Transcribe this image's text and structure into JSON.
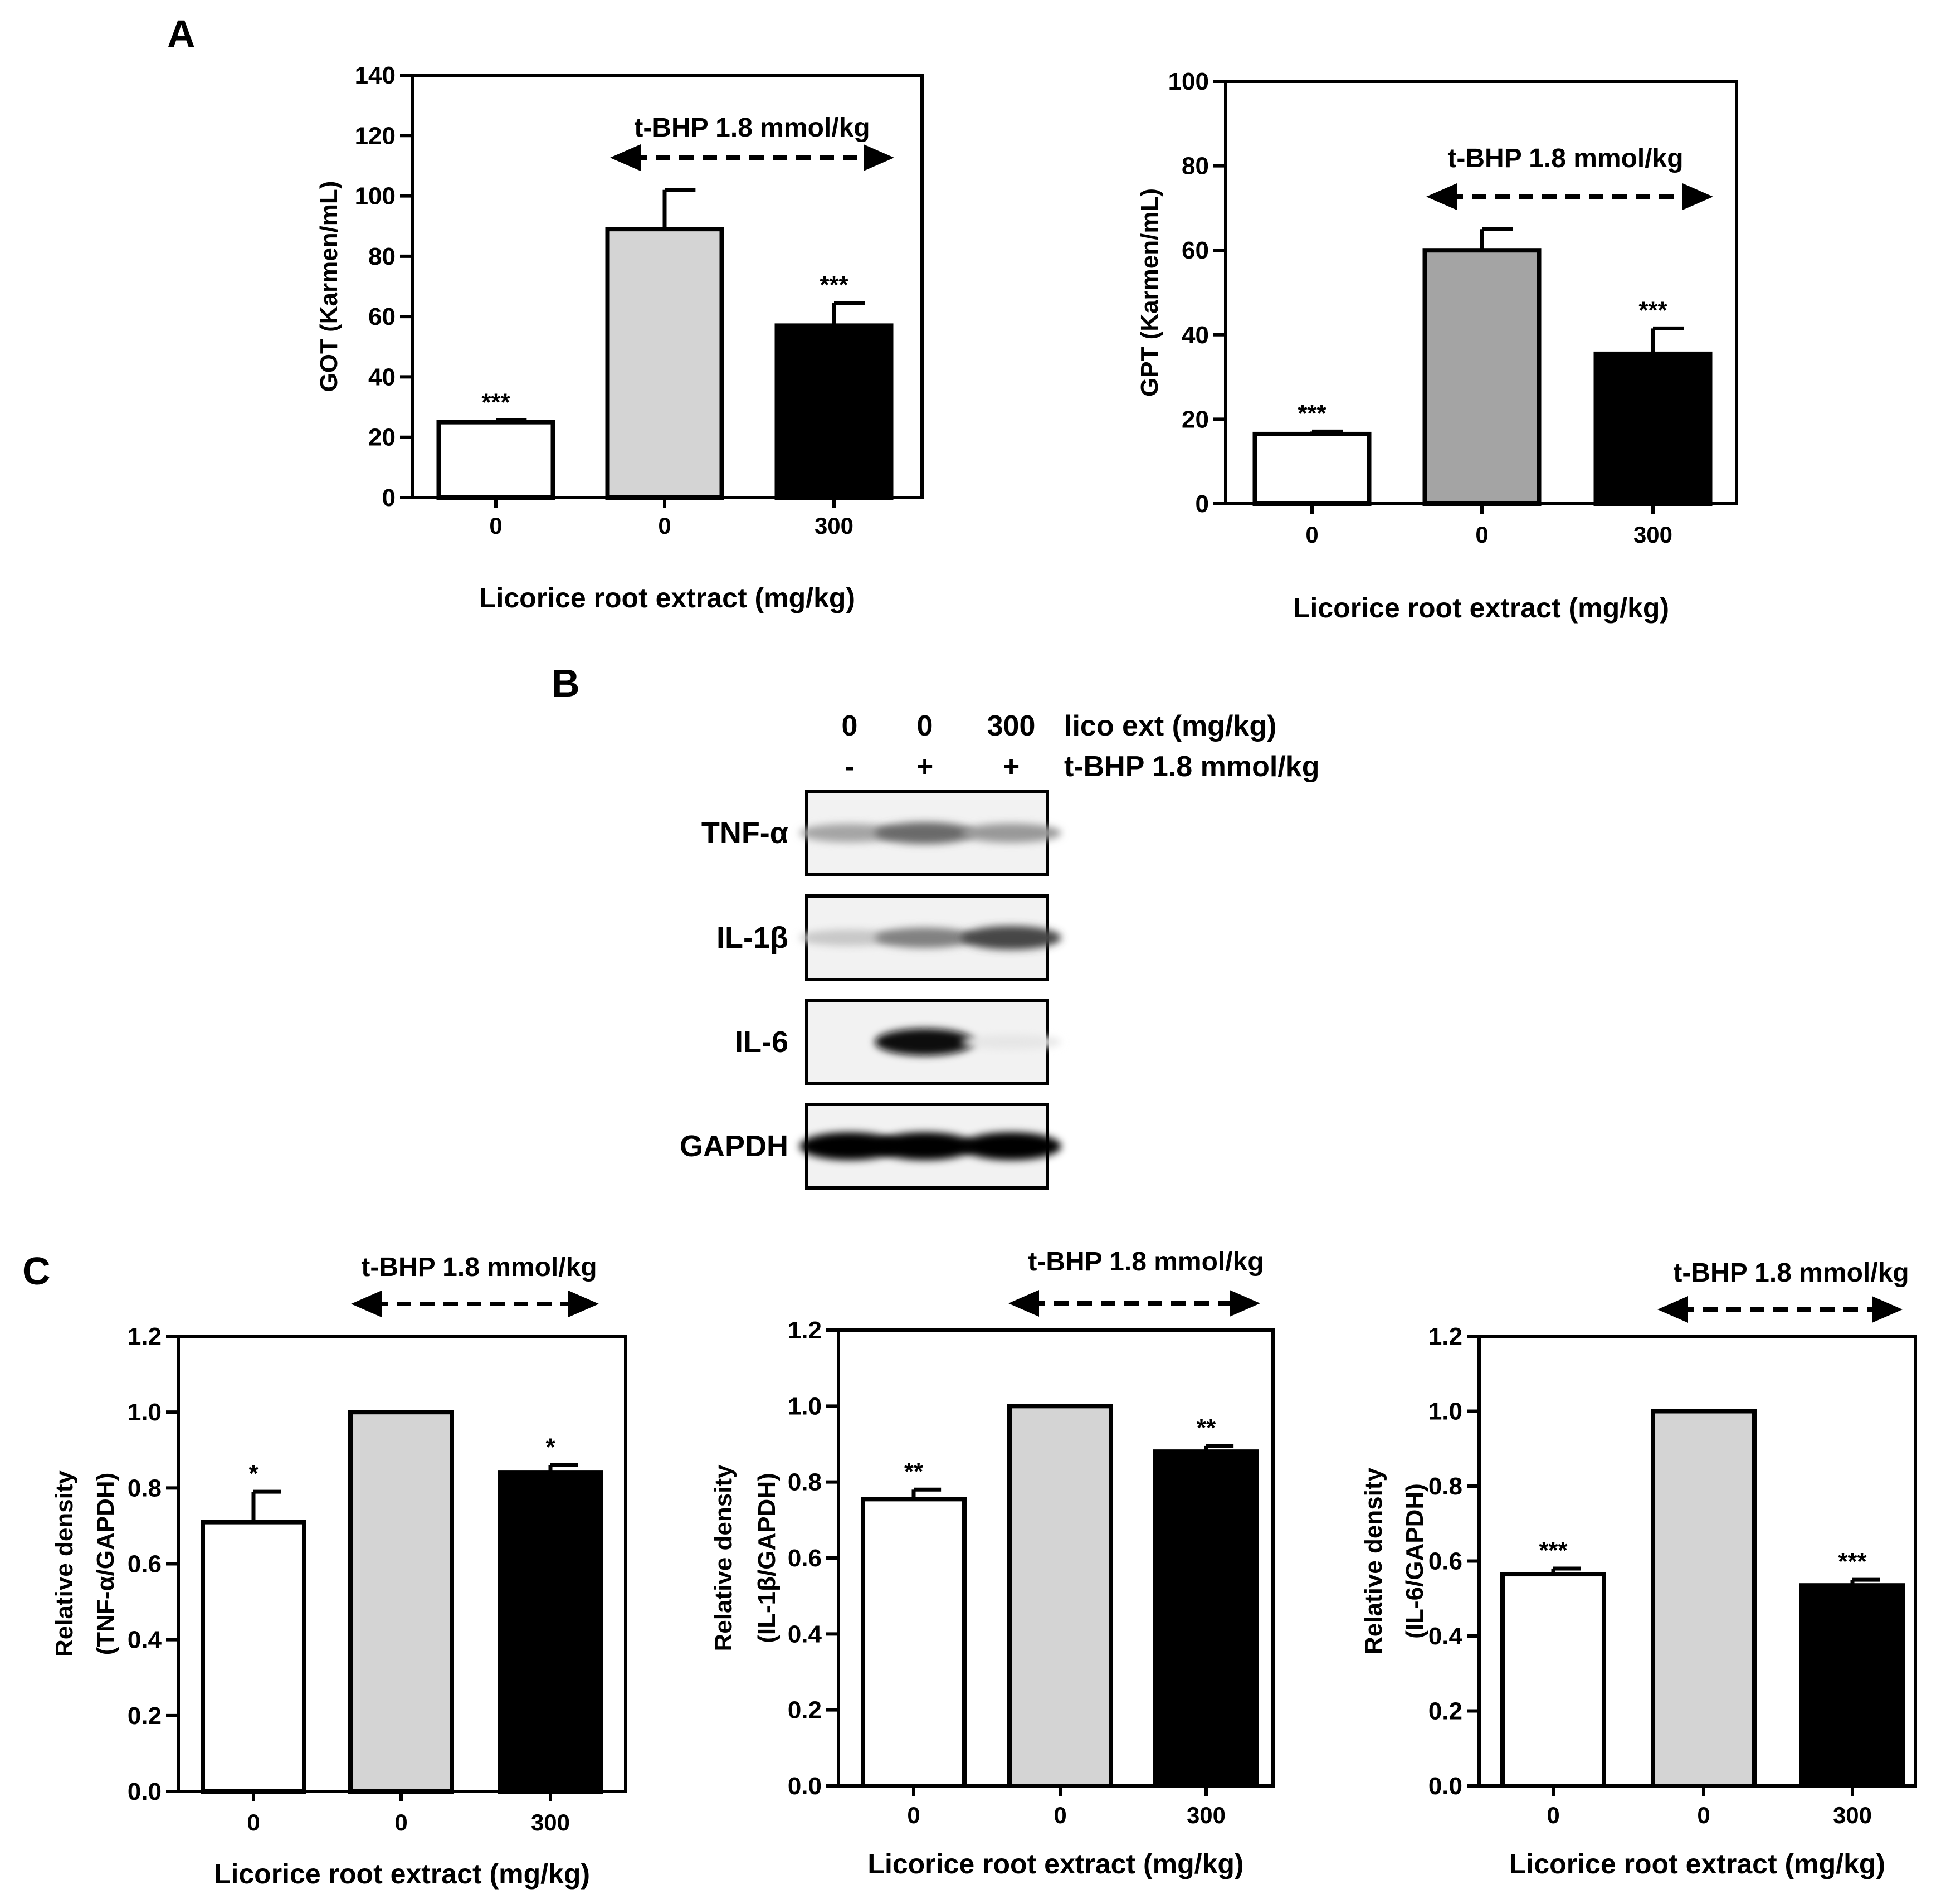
{
  "panels": {
    "A": "A",
    "B": "B",
    "C": "C"
  },
  "colors": {
    "control": "#ffffff",
    "tbhp_light": "#d4d4d4",
    "tbhp_mid": "#a4a4a4",
    "licorice": "#000000"
  },
  "chart_data": [
    {
      "id": "got",
      "panel": "A",
      "type": "bar",
      "categories": [
        "0",
        "0",
        "300"
      ],
      "values": [
        25,
        89,
        57
      ],
      "errors": [
        0.6,
        13,
        7.5
      ],
      "significance": [
        "***",
        "",
        "***"
      ],
      "bar_colors": [
        "#ffffff",
        "#d4d4d4",
        "#000000"
      ],
      "ylabel": "GOT (Karmen/mL)",
      "xlabel": "Licorice root extract (mg/kg)",
      "ylim": [
        0,
        140
      ],
      "yticks": [
        "0",
        "20",
        "40",
        "60",
        "80",
        "100",
        "120",
        "140"
      ],
      "annotation": "t-BHP 1.8 mmol/kg"
    },
    {
      "id": "gpt",
      "panel": "A",
      "type": "bar",
      "categories": [
        "0",
        "0",
        "300"
      ],
      "values": [
        16.5,
        60,
        35.5
      ],
      "errors": [
        0.6,
        5,
        6
      ],
      "significance": [
        "***",
        "",
        "***"
      ],
      "bar_colors": [
        "#ffffff",
        "#a4a4a4",
        "#000000"
      ],
      "ylabel": "GPT (Karmen/mL)",
      "xlabel": "Licorice root extract (mg/kg)",
      "ylim": [
        0,
        100
      ],
      "yticks": [
        "0",
        "20",
        "40",
        "60",
        "80",
        "100"
      ],
      "annotation": "t-BHP 1.8 mmol/kg"
    },
    {
      "id": "tnf",
      "panel": "C",
      "type": "bar",
      "categories": [
        "0",
        "0",
        "300"
      ],
      "values": [
        0.71,
        1.0,
        0.84
      ],
      "errors": [
        0.08,
        0,
        0.02
      ],
      "significance": [
        "*",
        "",
        "*"
      ],
      "bar_colors": [
        "#ffffff",
        "#d4d4d4",
        "#000000"
      ],
      "ylabel_line1": "Relative density",
      "ylabel_line2": "(TNF-α/GAPDH)",
      "xlabel": "Licorice root extract (mg/kg)",
      "ylim": [
        0,
        1.2
      ],
      "yticks": [
        "0.0",
        "0.2",
        "0.4",
        "0.6",
        "0.8",
        "1.0",
        "1.2"
      ],
      "annotation": "t-BHP 1.8 mmol/kg"
    },
    {
      "id": "il1b",
      "panel": "C",
      "type": "bar",
      "categories": [
        "0",
        "0",
        "300"
      ],
      "values": [
        0.755,
        1.0,
        0.88
      ],
      "errors": [
        0.025,
        0,
        0.015
      ],
      "significance": [
        "**",
        "",
        "**"
      ],
      "bar_colors": [
        "#ffffff",
        "#d4d4d4",
        "#000000"
      ],
      "ylabel_line1": "Relative density",
      "ylabel_line2": "(IL-1β/GAPDH)",
      "xlabel": "Licorice root extract (mg/kg)",
      "ylim": [
        0,
        1.2
      ],
      "yticks": [
        "0.0",
        "0.2",
        "0.4",
        "0.6",
        "0.8",
        "1.0",
        "1.2"
      ],
      "annotation": "t-BHP 1.8 mmol/kg"
    },
    {
      "id": "il6",
      "panel": "C",
      "type": "bar",
      "categories": [
        "0",
        "0",
        "300"
      ],
      "values": [
        0.565,
        1.0,
        0.535
      ],
      "errors": [
        0.015,
        0,
        0.015
      ],
      "significance": [
        "***",
        "",
        "***"
      ],
      "bar_colors": [
        "#ffffff",
        "#d4d4d4",
        "#000000"
      ],
      "ylabel_line1": "Relative density",
      "ylabel_line2": "(IL-6/GAPDH)",
      "xlabel": "Licorice root extract (mg/kg)",
      "ylim": [
        0,
        1.2
      ],
      "yticks": [
        "0.0",
        "0.2",
        "0.4",
        "0.6",
        "0.8",
        "1.0",
        "1.2"
      ],
      "annotation": "t-BHP 1.8 mmol/kg"
    }
  ],
  "blot": {
    "doses": [
      "0",
      "0",
      "300"
    ],
    "dose_label": "lico ext (mg/kg)",
    "tbhp_signs": [
      "-",
      "+",
      "+"
    ],
    "tbhp_label": "t-BHP 1.8 mmol/kg",
    "rows": [
      {
        "label": "TNF-α",
        "intensity": [
          0.3,
          0.55,
          0.35
        ]
      },
      {
        "label": "IL-1β",
        "intensity": [
          0.15,
          0.45,
          0.7
        ]
      },
      {
        "label": "IL-6",
        "intensity": [
          0.0,
          0.95,
          0.02
        ]
      },
      {
        "label": "GAPDH",
        "intensity": [
          1.0,
          1.0,
          1.0
        ]
      }
    ]
  }
}
